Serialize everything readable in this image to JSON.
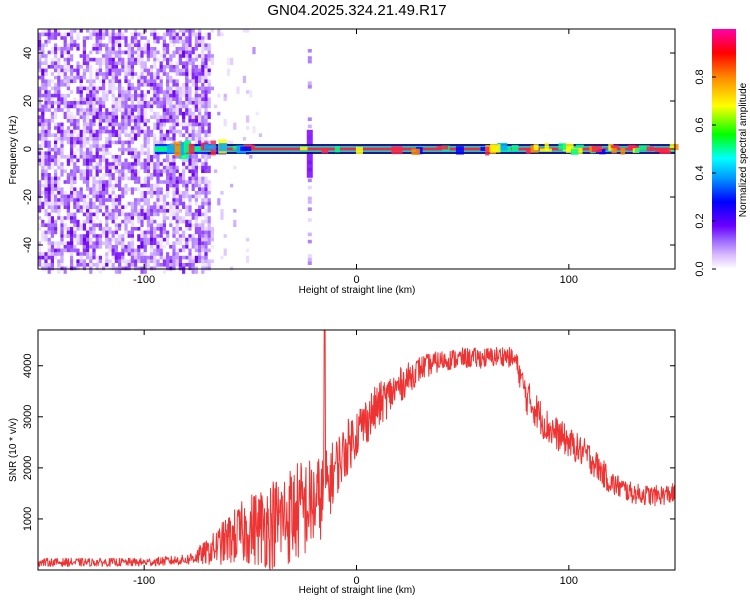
{
  "title": "GN04.2025.324.21.49.R17",
  "chart_data": [
    {
      "type": "heatmap",
      "title": "GN04.2025.324.21.49.R17",
      "xlabel": "Height of straight line (km)",
      "ylabel": "Frequency (Hz)",
      "xlim": [
        -150,
        150
      ],
      "ylim": [
        -50,
        50
      ],
      "x_ticks": [
        -100,
        0,
        100
      ],
      "y_ticks": [
        -40,
        -20,
        0,
        20,
        40
      ],
      "colorbar": {
        "label": "Normalized spectral amplitude",
        "range": [
          0,
          1
        ],
        "ticks": [
          "0.0",
          "0.2",
          "0.4",
          "0.6",
          "0.8"
        ],
        "colors": [
          "#ffffff",
          "#cc99ff",
          "#7a00ff",
          "#0000ff",
          "#00ccff",
          "#00ff00",
          "#ffff00",
          "#ff7f00",
          "#ff0000",
          "#ff00aa"
        ]
      },
      "description_of_signal": {
        "noise_region_x": [
          -150,
          -70
        ],
        "sparse_noise_x": [
          -70,
          -45
        ],
        "spike_x": -22,
        "ridge_frequency_hz": 0,
        "ridge_x": [
          -95,
          150
        ]
      }
    },
    {
      "type": "line",
      "xlabel": "Height of straight line (km)",
      "ylabel": "SNR (10 * v/v)",
      "xlim": [
        -150,
        150
      ],
      "ylim": [
        0,
        4700
      ],
      "x_ticks": [
        -100,
        0,
        100
      ],
      "y_ticks": [
        1000,
        2000,
        3000,
        4000
      ],
      "series": [
        {
          "color": "#ee3333",
          "envelope_x": [
            -150,
            -100,
            -80,
            -70,
            -60,
            -50,
            -40,
            -30,
            -25,
            -20,
            -15,
            -10,
            0,
            10,
            20,
            30,
            40,
            50,
            60,
            70,
            75,
            80,
            90,
            100,
            110,
            120,
            130,
            140,
            150
          ],
          "envelope_mid": [
            150,
            150,
            200,
            350,
            600,
            800,
            900,
            1100,
            1200,
            1300,
            1500,
            2000,
            2700,
            3200,
            3600,
            3950,
            4100,
            4150,
            4150,
            4200,
            4100,
            3400,
            2800,
            2500,
            2200,
            1700,
            1500,
            1450,
            1500
          ],
          "envelope_spread": [
            80,
            80,
            100,
            250,
            500,
            700,
            900,
            1000,
            1000,
            900,
            800,
            600,
            500,
            450,
            350,
            250,
            200,
            200,
            200,
            200,
            200,
            350,
            350,
            300,
            300,
            250,
            200,
            200,
            200
          ],
          "spike": {
            "x": -15,
            "y": 4700
          }
        }
      ]
    }
  ]
}
